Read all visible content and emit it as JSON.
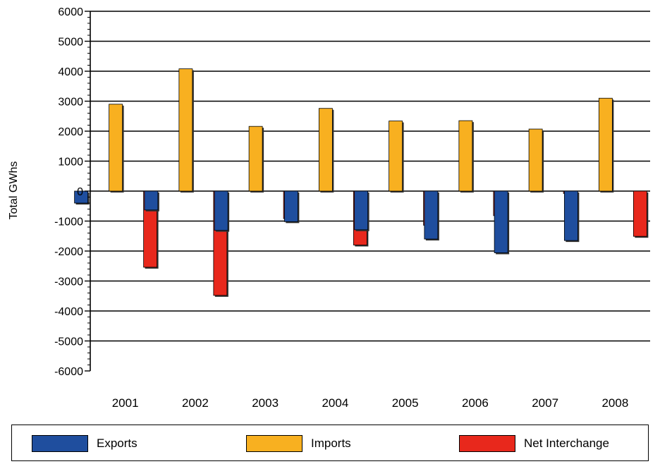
{
  "chart_data": {
    "type": "bar",
    "title": "",
    "xlabel": "",
    "ylabel": "Total GWhs",
    "ylim": [
      -6000,
      6000
    ],
    "yticks": [
      6000,
      5000,
      4000,
      3000,
      2000,
      1000,
      0,
      -1000,
      -2000,
      -3000,
      -4000,
      -5000,
      -6000
    ],
    "grid": true,
    "legend_position": "bottom",
    "categories": [
      "2001",
      "2002",
      "2003",
      "2004",
      "2005",
      "2006",
      "2007",
      "2008"
    ],
    "series": [
      {
        "name": "Exports",
        "color": "#1F4E9E",
        "values": [
          -400,
          -630,
          -1310,
          -1020,
          -1290,
          -1600,
          -2060,
          -1650
        ]
      },
      {
        "name": "Imports",
        "color": "#F8B020",
        "values": [
          2900,
          4080,
          2160,
          2760,
          2340,
          2350,
          2070,
          3100
        ]
      },
      {
        "name": "Net Interchange",
        "color": "#E8281C",
        "values": [
          -2540,
          -3480,
          -920,
          -1800,
          -1140,
          -820,
          -80,
          -1510
        ]
      }
    ]
  }
}
